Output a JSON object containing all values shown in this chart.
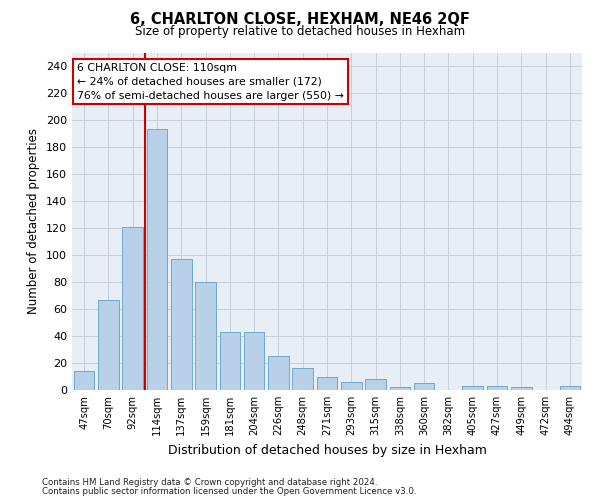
{
  "title": "6, CHARLTON CLOSE, HEXHAM, NE46 2QF",
  "subtitle": "Size of property relative to detached houses in Hexham",
  "xlabel": "Distribution of detached houses by size in Hexham",
  "ylabel": "Number of detached properties",
  "categories": [
    "47sqm",
    "70sqm",
    "92sqm",
    "114sqm",
    "137sqm",
    "159sqm",
    "181sqm",
    "204sqm",
    "226sqm",
    "248sqm",
    "271sqm",
    "293sqm",
    "315sqm",
    "338sqm",
    "360sqm",
    "382sqm",
    "405sqm",
    "427sqm",
    "449sqm",
    "472sqm",
    "494sqm"
  ],
  "values": [
    14,
    67,
    121,
    193,
    97,
    80,
    43,
    43,
    25,
    16,
    10,
    6,
    8,
    2,
    5,
    0,
    3,
    3,
    2,
    0,
    3
  ],
  "bar_color": "#b8d0e8",
  "bar_edgecolor": "#6fa8d0",
  "grid_color": "#c8d0dc",
  "background_color": "#e8eef5",
  "vline_color": "#cc0000",
  "vline_index": 2.5,
  "annotation_text_line1": "6 CHARLTON CLOSE: 110sqm",
  "annotation_text_line2": "← 24% of detached houses are smaller (172)",
  "annotation_text_line3": "76% of semi-detached houses are larger (550) →",
  "annotation_box_facecolor": "#ffffff",
  "annotation_box_edgecolor": "#cc0000",
  "ylim": [
    0,
    250
  ],
  "yticks": [
    0,
    20,
    40,
    60,
    80,
    100,
    120,
    140,
    160,
    180,
    200,
    220,
    240
  ],
  "footnote1": "Contains HM Land Registry data © Crown copyright and database right 2024.",
  "footnote2": "Contains public sector information licensed under the Open Government Licence v3.0."
}
